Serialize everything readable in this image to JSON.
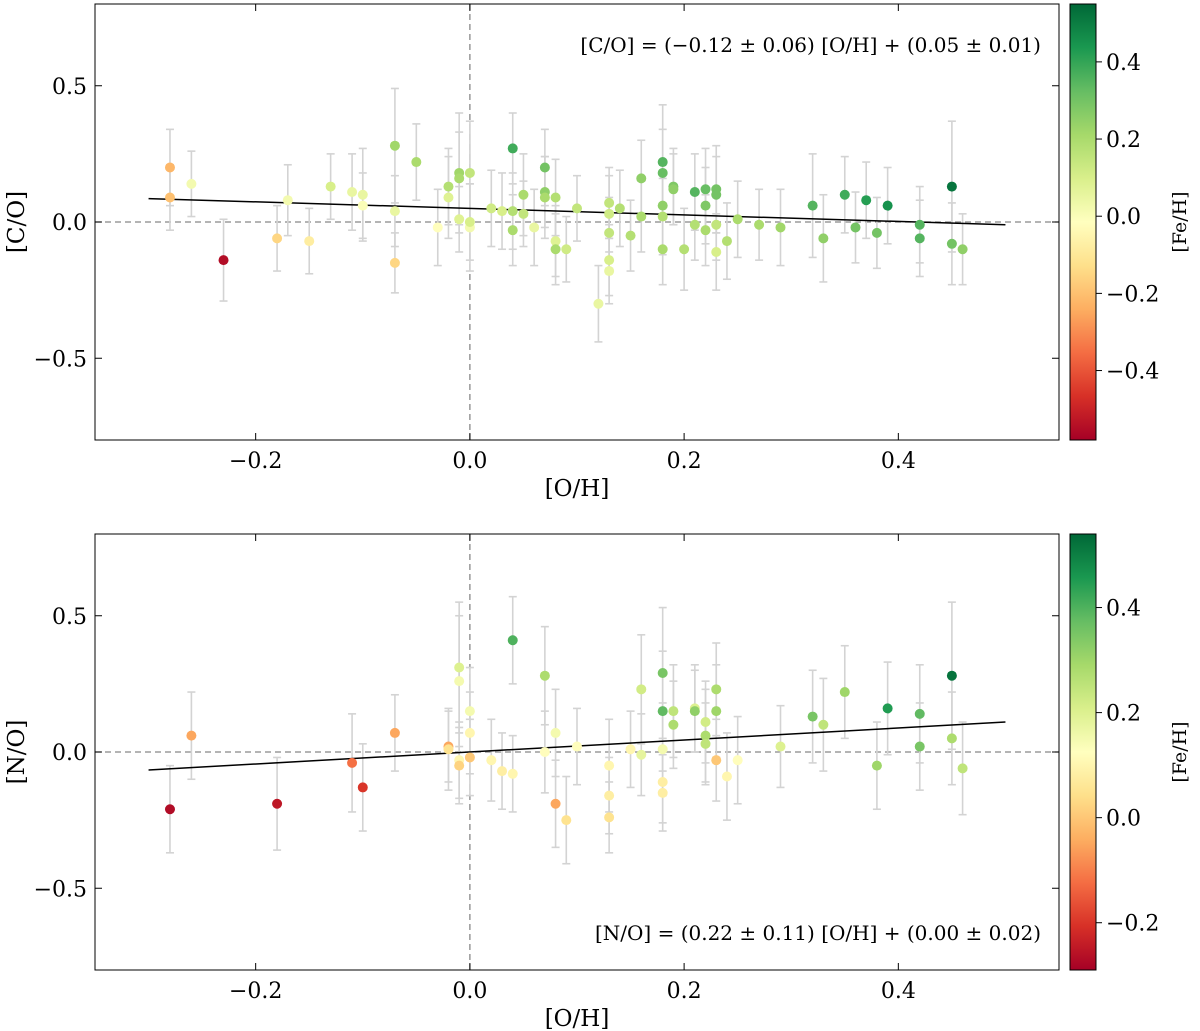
{
  "chart_data": [
    {
      "type": "scatter",
      "xlabel": "[O/H]",
      "ylabel": "[C/O]",
      "colorbar_label": "[Fe/H]",
      "xlim": [
        -0.35,
        0.55
      ],
      "ylim": [
        -0.8,
        0.8
      ],
      "xticks": [
        -0.2,
        0.0,
        0.2,
        0.4
      ],
      "xtick_labels": [
        "−0.2",
        "0.0",
        "0.2",
        "0.4"
      ],
      "yticks": [
        -0.5,
        0.0,
        0.5
      ],
      "ytick_labels": [
        "−0.5",
        "0.0",
        "0.5"
      ],
      "clim": [
        -0.58,
        0.55
      ],
      "cticks": [
        -0.4,
        -0.2,
        0.0,
        0.2,
        0.4
      ],
      "ctick_labels": [
        "−0.4",
        "−0.2",
        "0.0",
        "0.2",
        "0.4"
      ],
      "fit": {
        "slope": -0.12,
        "intercept": 0.05,
        "x_range": [
          -0.3,
          0.5
        ]
      },
      "annotation": "[C/O] = (−0.12 ± 0.06) [O/H] + (0.05 ± 0.01)",
      "annotation_position": "top-right",
      "points": [
        {
          "x": -0.28,
          "y": 0.2,
          "err": 0.14,
          "c": -0.22
        },
        {
          "x": -0.28,
          "y": 0.09,
          "err": 0.12,
          "c": -0.2
        },
        {
          "x": -0.26,
          "y": 0.14,
          "err": 0.12,
          "c": 0.02
        },
        {
          "x": -0.23,
          "y": -0.14,
          "err": 0.15,
          "c": -0.55
        },
        {
          "x": -0.18,
          "y": -0.06,
          "err": 0.12,
          "c": -0.15
        },
        {
          "x": -0.17,
          "y": 0.08,
          "err": 0.13,
          "c": 0.02
        },
        {
          "x": -0.15,
          "y": -0.07,
          "err": 0.12,
          "c": -0.08
        },
        {
          "x": -0.13,
          "y": 0.13,
          "err": 0.12,
          "c": 0.1
        },
        {
          "x": -0.11,
          "y": 0.11,
          "err": 0.14,
          "c": 0.05
        },
        {
          "x": -0.1,
          "y": 0.1,
          "err": 0.17,
          "c": 0.05
        },
        {
          "x": -0.1,
          "y": 0.06,
          "err": 0.12,
          "c": 0.0
        },
        {
          "x": -0.07,
          "y": 0.28,
          "err": 0.21,
          "c": 0.22
        },
        {
          "x": -0.07,
          "y": -0.15,
          "err": 0.11,
          "c": -0.15
        },
        {
          "x": -0.07,
          "y": 0.04,
          "err": 0.13,
          "c": 0.05
        },
        {
          "x": -0.05,
          "y": 0.22,
          "err": 0.14,
          "c": 0.2
        },
        {
          "x": -0.03,
          "y": -0.02,
          "err": 0.14,
          "c": -0.02
        },
        {
          "x": -0.02,
          "y": 0.13,
          "err": 0.14,
          "c": 0.18
        },
        {
          "x": -0.02,
          "y": 0.09,
          "err": 0.15,
          "c": 0.08
        },
        {
          "x": -0.01,
          "y": 0.18,
          "err": 0.22,
          "c": 0.22
        },
        {
          "x": -0.01,
          "y": 0.16,
          "err": 0.17,
          "c": 0.2
        },
        {
          "x": -0.01,
          "y": 0.01,
          "err": 0.12,
          "c": 0.08
        },
        {
          "x": 0.0,
          "y": 0.18,
          "err": 0.19,
          "c": 0.15
        },
        {
          "x": 0.0,
          "y": -0.02,
          "err": 0.16,
          "c": 0.02
        },
        {
          "x": 0.0,
          "y": 0.0,
          "err": 0.14,
          "c": 0.1
        },
        {
          "x": 0.02,
          "y": 0.05,
          "err": 0.14,
          "c": 0.12
        },
        {
          "x": 0.03,
          "y": 0.04,
          "err": 0.14,
          "c": 0.1
        },
        {
          "x": 0.04,
          "y": 0.27,
          "err": 0.13,
          "c": 0.38
        },
        {
          "x": 0.04,
          "y": 0.04,
          "err": 0.14,
          "c": 0.18
        },
        {
          "x": 0.04,
          "y": -0.03,
          "err": 0.13,
          "c": 0.2
        },
        {
          "x": 0.05,
          "y": 0.1,
          "err": 0.15,
          "c": 0.2
        },
        {
          "x": 0.05,
          "y": 0.03,
          "err": 0.12,
          "c": 0.15
        },
        {
          "x": 0.06,
          "y": -0.02,
          "err": 0.14,
          "c": 0.05
        },
        {
          "x": 0.07,
          "y": 0.2,
          "err": 0.14,
          "c": 0.3
        },
        {
          "x": 0.07,
          "y": 0.11,
          "err": 0.13,
          "c": 0.25
        },
        {
          "x": 0.07,
          "y": 0.09,
          "err": 0.15,
          "c": 0.2
        },
        {
          "x": 0.08,
          "y": 0.09,
          "err": 0.14,
          "c": 0.18
        },
        {
          "x": 0.08,
          "y": -0.07,
          "err": 0.13,
          "c": 0.08
        },
        {
          "x": 0.08,
          "y": -0.1,
          "err": 0.13,
          "c": 0.2
        },
        {
          "x": 0.09,
          "y": -0.1,
          "err": 0.12,
          "c": 0.12
        },
        {
          "x": 0.1,
          "y": 0.05,
          "err": 0.12,
          "c": 0.15
        },
        {
          "x": 0.12,
          "y": -0.3,
          "err": 0.14,
          "c": 0.05
        },
        {
          "x": 0.13,
          "y": 0.07,
          "err": 0.13,
          "c": 0.15
        },
        {
          "x": 0.13,
          "y": 0.03,
          "err": 0.14,
          "c": 0.12
        },
        {
          "x": 0.13,
          "y": -0.04,
          "err": 0.13,
          "c": 0.15
        },
        {
          "x": 0.13,
          "y": -0.14,
          "err": 0.13,
          "c": 0.1
        },
        {
          "x": 0.13,
          "y": -0.18,
          "err": 0.12,
          "c": 0.05
        },
        {
          "x": 0.14,
          "y": 0.05,
          "err": 0.14,
          "c": 0.18
        },
        {
          "x": 0.15,
          "y": -0.05,
          "err": 0.13,
          "c": 0.18
        },
        {
          "x": 0.16,
          "y": 0.16,
          "err": 0.14,
          "c": 0.25
        },
        {
          "x": 0.16,
          "y": 0.02,
          "err": 0.13,
          "c": 0.2
        },
        {
          "x": 0.18,
          "y": 0.22,
          "err": 0.21,
          "c": 0.35
        },
        {
          "x": 0.18,
          "y": 0.18,
          "err": 0.16,
          "c": 0.32
        },
        {
          "x": 0.18,
          "y": 0.06,
          "err": 0.16,
          "c": 0.25
        },
        {
          "x": 0.18,
          "y": 0.02,
          "err": 0.14,
          "c": 0.18
        },
        {
          "x": 0.18,
          "y": -0.1,
          "err": 0.13,
          "c": 0.2
        },
        {
          "x": 0.19,
          "y": 0.13,
          "err": 0.14,
          "c": 0.28
        },
        {
          "x": 0.19,
          "y": 0.12,
          "err": 0.13,
          "c": 0.25
        },
        {
          "x": 0.2,
          "y": -0.1,
          "err": 0.15,
          "c": 0.18
        },
        {
          "x": 0.21,
          "y": 0.11,
          "err": 0.14,
          "c": 0.35
        },
        {
          "x": 0.21,
          "y": -0.01,
          "err": 0.13,
          "c": 0.18
        },
        {
          "x": 0.22,
          "y": 0.12,
          "err": 0.15,
          "c": 0.32
        },
        {
          "x": 0.22,
          "y": 0.06,
          "err": 0.14,
          "c": 0.28
        },
        {
          "x": 0.22,
          "y": -0.03,
          "err": 0.13,
          "c": 0.2
        },
        {
          "x": 0.23,
          "y": 0.12,
          "err": 0.16,
          "c": 0.3
        },
        {
          "x": 0.23,
          "y": 0.1,
          "err": 0.14,
          "c": 0.3
        },
        {
          "x": 0.23,
          "y": -0.01,
          "err": 0.13,
          "c": 0.15
        },
        {
          "x": 0.23,
          "y": -0.11,
          "err": 0.14,
          "c": 0.1
        },
        {
          "x": 0.24,
          "y": -0.07,
          "err": 0.14,
          "c": 0.18
        },
        {
          "x": 0.25,
          "y": 0.01,
          "err": 0.14,
          "c": 0.2
        },
        {
          "x": 0.27,
          "y": -0.01,
          "err": 0.13,
          "c": 0.2
        },
        {
          "x": 0.29,
          "y": -0.02,
          "err": 0.14,
          "c": 0.22
        },
        {
          "x": 0.32,
          "y": 0.06,
          "err": 0.19,
          "c": 0.35
        },
        {
          "x": 0.33,
          "y": -0.06,
          "err": 0.16,
          "c": 0.25
        },
        {
          "x": 0.35,
          "y": 0.1,
          "err": 0.14,
          "c": 0.38
        },
        {
          "x": 0.36,
          "y": -0.02,
          "err": 0.13,
          "c": 0.3
        },
        {
          "x": 0.37,
          "y": 0.08,
          "err": 0.14,
          "c": 0.42
        },
        {
          "x": 0.38,
          "y": -0.04,
          "err": 0.13,
          "c": 0.3
        },
        {
          "x": 0.39,
          "y": 0.06,
          "err": 0.14,
          "c": 0.45
        },
        {
          "x": 0.42,
          "y": -0.01,
          "err": 0.14,
          "c": 0.35
        },
        {
          "x": 0.42,
          "y": -0.06,
          "err": 0.14,
          "c": 0.35
        },
        {
          "x": 0.45,
          "y": 0.13,
          "err": 0.24,
          "c": 0.52
        },
        {
          "x": 0.45,
          "y": -0.08,
          "err": 0.15,
          "c": 0.3
        },
        {
          "x": 0.46,
          "y": -0.1,
          "err": 0.13,
          "c": 0.25
        }
      ]
    },
    {
      "type": "scatter",
      "xlabel": "[O/H]",
      "ylabel": "[N/O]",
      "colorbar_label": "[Fe/H]",
      "xlim": [
        -0.35,
        0.55
      ],
      "ylim": [
        -0.8,
        0.8
      ],
      "xticks": [
        -0.2,
        0.0,
        0.2,
        0.4
      ],
      "xtick_labels": [
        "−0.2",
        "0.0",
        "0.2",
        "0.4"
      ],
      "yticks": [
        -0.5,
        0.0,
        0.5
      ],
      "ytick_labels": [
        "−0.5",
        "0.0",
        "0.5"
      ],
      "clim": [
        -0.29,
        0.54
      ],
      "cticks": [
        -0.2,
        0.0,
        0.2,
        0.4
      ],
      "ctick_labels": [
        "−0.2",
        "0.0",
        "0.2",
        "0.4"
      ],
      "fit": {
        "slope": 0.22,
        "intercept": 0.0,
        "x_range": [
          -0.3,
          0.5
        ]
      },
      "annotation": "[N/O] = (0.22 ± 0.11) [O/H] + (0.00 ± 0.02)",
      "annotation_position": "bottom-right",
      "points": [
        {
          "x": -0.28,
          "y": -0.21,
          "err": 0.16,
          "c": -0.27
        },
        {
          "x": -0.26,
          "y": 0.06,
          "err": 0.16,
          "c": -0.05
        },
        {
          "x": -0.18,
          "y": -0.19,
          "err": 0.17,
          "c": -0.25
        },
        {
          "x": -0.11,
          "y": -0.04,
          "err": 0.18,
          "c": -0.12
        },
        {
          "x": -0.1,
          "y": -0.13,
          "err": 0.16,
          "c": -0.2
        },
        {
          "x": -0.07,
          "y": 0.07,
          "err": 0.14,
          "c": -0.05
        },
        {
          "x": -0.02,
          "y": 0.02,
          "err": 0.13,
          "c": -0.05
        },
        {
          "x": -0.02,
          "y": 0.01,
          "err": 0.15,
          "c": 0.05
        },
        {
          "x": -0.01,
          "y": 0.31,
          "err": 0.24,
          "c": 0.2
        },
        {
          "x": -0.01,
          "y": 0.26,
          "err": 0.24,
          "c": 0.15
        },
        {
          "x": -0.01,
          "y": -0.03,
          "err": 0.14,
          "c": 0.1
        },
        {
          "x": -0.01,
          "y": -0.05,
          "err": 0.14,
          "c": 0.02
        },
        {
          "x": 0.0,
          "y": 0.15,
          "err": 0.16,
          "c": 0.15
        },
        {
          "x": 0.0,
          "y": 0.07,
          "err": 0.15,
          "c": 0.1
        },
        {
          "x": 0.0,
          "y": -0.02,
          "err": 0.14,
          "c": 0.0
        },
        {
          "x": 0.02,
          "y": -0.03,
          "err": 0.15,
          "c": 0.1
        },
        {
          "x": 0.03,
          "y": -0.07,
          "err": 0.14,
          "c": 0.08
        },
        {
          "x": 0.04,
          "y": 0.41,
          "err": 0.16,
          "c": 0.4
        },
        {
          "x": 0.04,
          "y": -0.08,
          "err": 0.14,
          "c": 0.1
        },
        {
          "x": 0.07,
          "y": 0.28,
          "err": 0.18,
          "c": 0.28
        },
        {
          "x": 0.07,
          "y": 0.0,
          "err": 0.15,
          "c": 0.12
        },
        {
          "x": 0.08,
          "y": 0.07,
          "err": 0.16,
          "c": 0.15
        },
        {
          "x": 0.08,
          "y": -0.19,
          "err": 0.16,
          "c": -0.05
        },
        {
          "x": 0.09,
          "y": -0.25,
          "err": 0.16,
          "c": 0.05
        },
        {
          "x": 0.1,
          "y": 0.02,
          "err": 0.14,
          "c": 0.12
        },
        {
          "x": 0.13,
          "y": -0.05,
          "err": 0.17,
          "c": 0.1
        },
        {
          "x": 0.13,
          "y": -0.16,
          "err": 0.14,
          "c": 0.08
        },
        {
          "x": 0.13,
          "y": -0.24,
          "err": 0.13,
          "c": 0.05
        },
        {
          "x": 0.15,
          "y": 0.01,
          "err": 0.14,
          "c": 0.1
        },
        {
          "x": 0.16,
          "y": 0.23,
          "err": 0.2,
          "c": 0.22
        },
        {
          "x": 0.16,
          "y": -0.01,
          "err": 0.15,
          "c": 0.18
        },
        {
          "x": 0.18,
          "y": 0.29,
          "err": 0.24,
          "c": 0.35
        },
        {
          "x": 0.18,
          "y": 0.15,
          "err": 0.22,
          "c": 0.38
        },
        {
          "x": 0.18,
          "y": 0.01,
          "err": 0.17,
          "c": 0.15
        },
        {
          "x": 0.18,
          "y": -0.11,
          "err": 0.15,
          "c": 0.08
        },
        {
          "x": 0.18,
          "y": -0.15,
          "err": 0.14,
          "c": 0.08
        },
        {
          "x": 0.19,
          "y": 0.15,
          "err": 0.17,
          "c": 0.25
        },
        {
          "x": 0.19,
          "y": 0.1,
          "err": 0.16,
          "c": 0.28
        },
        {
          "x": 0.21,
          "y": 0.16,
          "err": 0.16,
          "c": 0.2
        },
        {
          "x": 0.21,
          "y": 0.15,
          "err": 0.15,
          "c": 0.32
        },
        {
          "x": 0.22,
          "y": 0.11,
          "err": 0.15,
          "c": 0.22
        },
        {
          "x": 0.22,
          "y": 0.06,
          "err": 0.17,
          "c": 0.28
        },
        {
          "x": 0.22,
          "y": 0.03,
          "err": 0.15,
          "c": 0.25
        },
        {
          "x": 0.23,
          "y": 0.23,
          "err": 0.17,
          "c": 0.28
        },
        {
          "x": 0.23,
          "y": 0.15,
          "err": 0.17,
          "c": 0.3
        },
        {
          "x": 0.23,
          "y": -0.03,
          "err": 0.15,
          "c": 0.0
        },
        {
          "x": 0.24,
          "y": -0.09,
          "err": 0.16,
          "c": 0.1
        },
        {
          "x": 0.25,
          "y": -0.03,
          "err": 0.16,
          "c": 0.12
        },
        {
          "x": 0.29,
          "y": 0.02,
          "err": 0.15,
          "c": 0.2
        },
        {
          "x": 0.32,
          "y": 0.13,
          "err": 0.17,
          "c": 0.35
        },
        {
          "x": 0.33,
          "y": 0.1,
          "err": 0.17,
          "c": 0.25
        },
        {
          "x": 0.35,
          "y": 0.22,
          "err": 0.17,
          "c": 0.3
        },
        {
          "x": 0.38,
          "y": -0.05,
          "err": 0.16,
          "c": 0.3
        },
        {
          "x": 0.39,
          "y": 0.16,
          "err": 0.17,
          "c": 0.45
        },
        {
          "x": 0.42,
          "y": 0.14,
          "err": 0.18,
          "c": 0.38
        },
        {
          "x": 0.42,
          "y": 0.02,
          "err": 0.16,
          "c": 0.35
        },
        {
          "x": 0.45,
          "y": 0.28,
          "err": 0.27,
          "c": 0.52
        },
        {
          "x": 0.45,
          "y": 0.05,
          "err": 0.17,
          "c": 0.28
        },
        {
          "x": 0.46,
          "y": -0.06,
          "err": 0.17,
          "c": 0.25
        }
      ]
    }
  ]
}
